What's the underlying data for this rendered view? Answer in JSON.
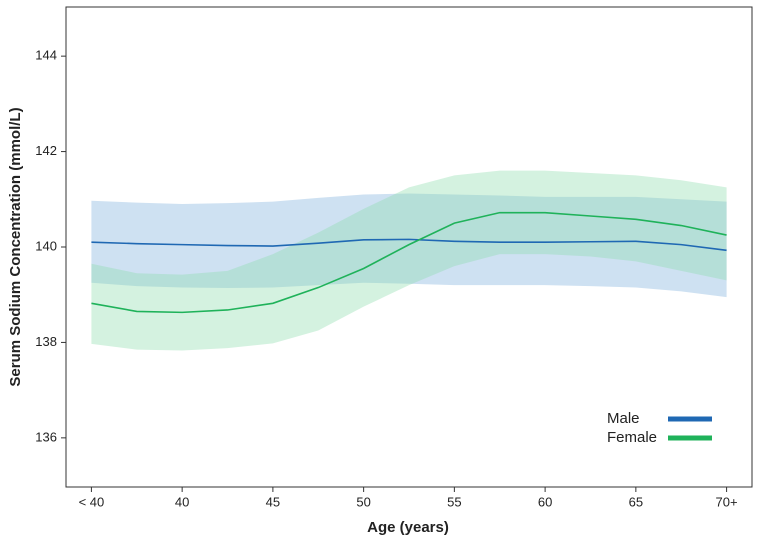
{
  "chart_data": {
    "type": "line",
    "xlabel": "Age (years)",
    "ylabel": "Serum Sodium Concentration (mmol/L)",
    "x": [
      35,
      37.5,
      40,
      42.5,
      45,
      47.5,
      50,
      52.5,
      55,
      57.5,
      60,
      62.5,
      65,
      67.5,
      70
    ],
    "series": [
      {
        "name": "Male",
        "color": "#1f68b3",
        "band_color": "#7fb0dc",
        "values": [
          140.1,
          140.07,
          140.05,
          140.03,
          140.02,
          140.08,
          140.15,
          140.16,
          140.12,
          140.1,
          140.1,
          140.11,
          140.12,
          140.05,
          139.93
        ],
        "lower": [
          139.25,
          139.18,
          139.15,
          139.14,
          139.15,
          139.2,
          139.25,
          139.23,
          139.2,
          139.2,
          139.2,
          139.18,
          139.15,
          139.07,
          138.95
        ],
        "upper": [
          140.97,
          140.93,
          140.9,
          140.92,
          140.95,
          141.03,
          141.1,
          141.12,
          141.1,
          141.08,
          141.05,
          141.05,
          141.05,
          141.0,
          140.95
        ]
      },
      {
        "name": "Female",
        "color": "#1fb25a",
        "band_color": "#8fdcae",
        "values": [
          138.82,
          138.65,
          138.63,
          138.68,
          138.82,
          139.15,
          139.55,
          140.05,
          140.5,
          140.72,
          140.72,
          140.65,
          140.58,
          140.45,
          140.25
        ],
        "lower": [
          137.97,
          137.85,
          137.83,
          137.88,
          137.98,
          138.25,
          138.75,
          139.2,
          139.6,
          139.85,
          139.85,
          139.8,
          139.7,
          139.5,
          139.3
        ],
        "upper": [
          139.65,
          139.45,
          139.42,
          139.5,
          139.85,
          140.3,
          140.8,
          141.25,
          141.5,
          141.6,
          141.6,
          141.55,
          141.5,
          141.4,
          141.25
        ]
      }
    ],
    "xlim": [
      33.6,
      71.4
    ],
    "ylim": [
      134.97,
      145.03
    ],
    "xticks": [
      {
        "value": 35,
        "label": "< 40"
      },
      40,
      45,
      50,
      55,
      60,
      65,
      {
        "value": 70,
        "label": "70+"
      }
    ],
    "yticks": [
      136,
      138,
      140,
      142,
      144
    ],
    "legend": "lower right"
  }
}
